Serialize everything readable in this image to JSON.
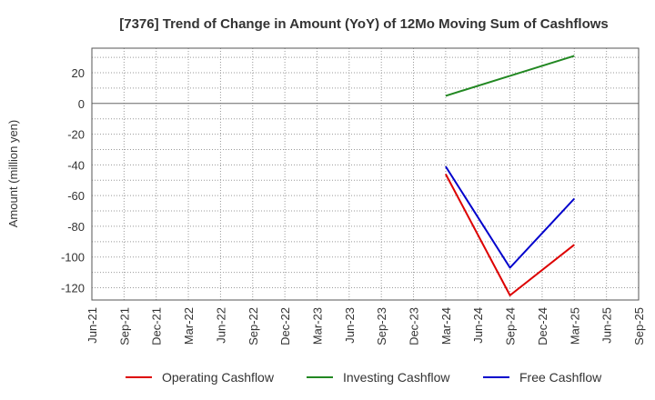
{
  "chart_data": {
    "type": "line",
    "title": "[7376]  Trend of Change in Amount (YoY) of 12Mo Moving Sum of Cashflows",
    "ylabel": "Amount (million yen)",
    "xlabel": "",
    "categories": [
      "Jun-21",
      "Sep-21",
      "Dec-21",
      "Mar-22",
      "Jun-22",
      "Sep-22",
      "Dec-22",
      "Mar-23",
      "Jun-23",
      "Sep-23",
      "Dec-23",
      "Mar-24",
      "Jun-24",
      "Sep-24",
      "Dec-24",
      "Mar-25",
      "Jun-25",
      "Sep-25"
    ],
    "ylim": [
      -128,
      36
    ],
    "yticks": [
      20,
      0,
      -20,
      -40,
      -60,
      -80,
      -100,
      -120
    ],
    "grid": true,
    "legend_position": "bottom",
    "series": [
      {
        "name": "Operating Cashflow",
        "color": "#dd0000",
        "values": [
          null,
          null,
          null,
          null,
          null,
          null,
          null,
          null,
          null,
          null,
          null,
          -46,
          null,
          -125,
          null,
          -92,
          null,
          null
        ]
      },
      {
        "name": "Investing Cashflow",
        "color": "#228822",
        "values": [
          null,
          null,
          null,
          null,
          null,
          null,
          null,
          null,
          null,
          null,
          null,
          5,
          null,
          18,
          null,
          31,
          null,
          null
        ]
      },
      {
        "name": "Free Cashflow",
        "color": "#0000cc",
        "values": [
          null,
          null,
          null,
          null,
          null,
          null,
          null,
          null,
          null,
          null,
          null,
          -41,
          null,
          -107,
          null,
          -62,
          null,
          null
        ]
      }
    ]
  }
}
